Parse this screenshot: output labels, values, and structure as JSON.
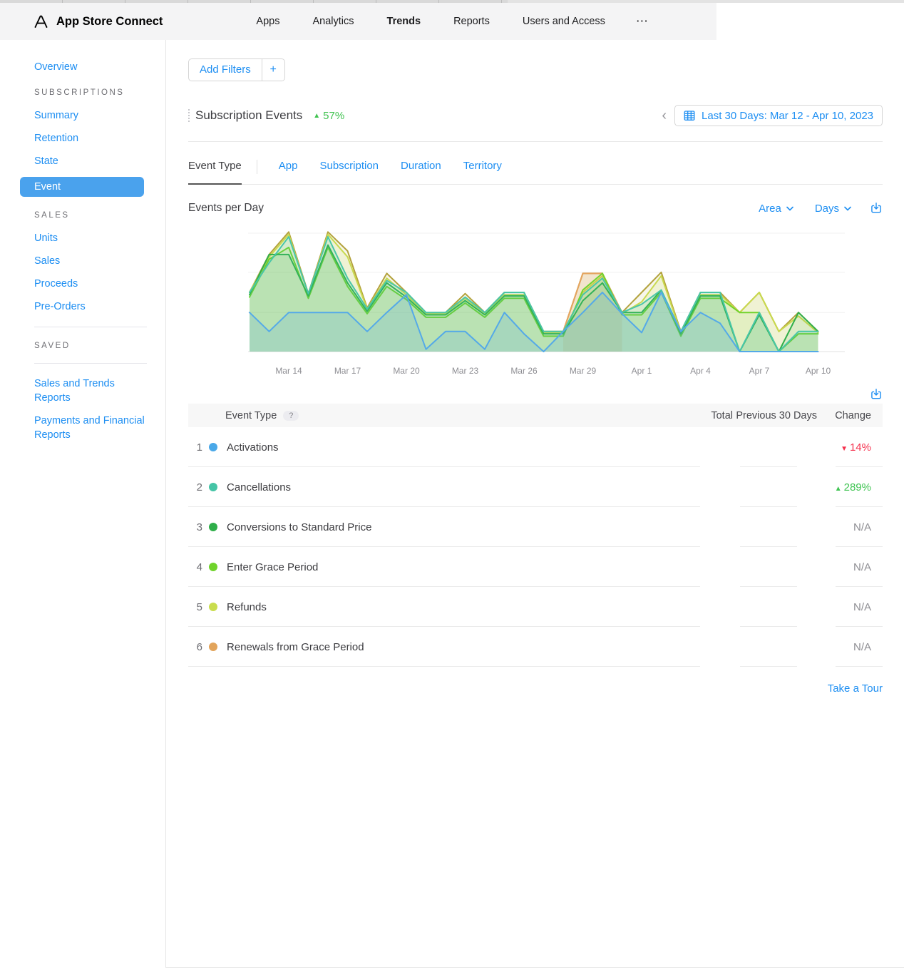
{
  "header": {
    "app_title": "App Store Connect",
    "nav": [
      {
        "label": "Apps",
        "active": false
      },
      {
        "label": "Analytics",
        "active": false
      },
      {
        "label": "Trends",
        "active": true
      },
      {
        "label": "Reports",
        "active": false
      },
      {
        "label": "Users and Access",
        "active": false
      }
    ],
    "more_label": "⋯"
  },
  "sidebar": {
    "items": [
      {
        "type": "link",
        "label": "Overview"
      },
      {
        "type": "section",
        "label": "SUBSCRIPTIONS"
      },
      {
        "type": "link",
        "label": "Summary"
      },
      {
        "type": "link",
        "label": "Retention"
      },
      {
        "type": "link",
        "label": "State"
      },
      {
        "type": "link",
        "label": "Event",
        "selected": true
      },
      {
        "type": "section",
        "label": "SALES"
      },
      {
        "type": "link",
        "label": "Units"
      },
      {
        "type": "link",
        "label": "Sales"
      },
      {
        "type": "link",
        "label": "Proceeds"
      },
      {
        "type": "link",
        "label": "Pre-Orders"
      },
      {
        "type": "divider"
      },
      {
        "type": "section",
        "label": "SAVED"
      },
      {
        "type": "divider"
      },
      {
        "type": "link",
        "label": "Sales and Trends Reports"
      },
      {
        "type": "link",
        "label": "Payments and Financial Reports"
      }
    ]
  },
  "filters": {
    "add_label": "Add Filters",
    "plus_label": "+"
  },
  "summary": {
    "title": "Subscription Events",
    "change": "57%",
    "direction": "up"
  },
  "date_picker": {
    "prev_arrow": "‹",
    "label": "Last 30 Days: Mar 12 - Apr 10, 2023"
  },
  "tabs": [
    {
      "label": "Event Type",
      "active": true
    },
    {
      "label": "App",
      "active": false
    },
    {
      "label": "Subscription",
      "active": false
    },
    {
      "label": "Duration",
      "active": false
    },
    {
      "label": "Territory",
      "active": false
    }
  ],
  "chart_header": {
    "title": "Events per Day",
    "type_selector": "Area",
    "interval_selector": "Days"
  },
  "chart_data": {
    "type": "area",
    "title": "Events per Day",
    "x": [
      "Mar 12",
      "Mar 13",
      "Mar 14",
      "Mar 15",
      "Mar 16",
      "Mar 17",
      "Mar 18",
      "Mar 19",
      "Mar 20",
      "Mar 21",
      "Mar 22",
      "Mar 23",
      "Mar 24",
      "Mar 25",
      "Mar 26",
      "Mar 27",
      "Mar 28",
      "Mar 29",
      "Mar 30",
      "Mar 31",
      "Apr 1",
      "Apr 2",
      "Apr 3",
      "Apr 4",
      "Apr 5",
      "Apr 6",
      "Apr 7",
      "Apr 8",
      "Apr 9",
      "Apr 10"
    ],
    "x_tick_labels": [
      "Mar 14",
      "Mar 17",
      "Mar 20",
      "Mar 23",
      "Mar 26",
      "Mar 29",
      "Apr 1",
      "Apr 4",
      "Apr 7",
      "Apr 10"
    ],
    "x_tick_indices": [
      2,
      5,
      8,
      11,
      14,
      17,
      20,
      23,
      26,
      29
    ],
    "ylim": [
      0,
      110
    ],
    "gridline_values": [
      0,
      33,
      67,
      100
    ],
    "y_axis_labels_shown": false,
    "legend_position": "none",
    "note": "values estimated from unlabeled y-axis gridlines",
    "series": [
      {
        "name": "Activations",
        "color": "#54a9e8",
        "fill_opacity": 0.18,
        "values": [
          33,
          17,
          33,
          33,
          33,
          33,
          17,
          33,
          48,
          2,
          17,
          17,
          2,
          33,
          15,
          0,
          17,
          33,
          50,
          32,
          16,
          50,
          17,
          33,
          24,
          0,
          0,
          0,
          0,
          0
        ]
      },
      {
        "name": "Cancellations",
        "color": "#49c6a8",
        "fill_opacity": 0.16,
        "values": [
          50,
          75,
          97,
          49,
          97,
          62,
          36,
          60,
          50,
          33,
          33,
          46,
          33,
          50,
          50,
          17,
          17,
          48,
          62,
          33,
          40,
          52,
          17,
          50,
          50,
          0,
          33,
          0,
          17,
          17
        ]
      },
      {
        "name": "Conversions to Standard Price",
        "color": "#2fae4a",
        "fill_opacity": 0.1,
        "values": [
          48,
          82,
          82,
          47,
          90,
          58,
          34,
          58,
          46,
          31,
          31,
          43,
          31,
          47,
          47,
          15,
          15,
          43,
          58,
          33,
          33,
          52,
          15,
          47,
          47,
          0,
          31,
          0,
          33,
          17
        ]
      },
      {
        "name": "Enter Grace Period",
        "color": "#72d32c",
        "fill_opacity": 0.1,
        "values": [
          46,
          78,
          88,
          45,
          88,
          55,
          32,
          55,
          44,
          29,
          29,
          41,
          29,
          45,
          45,
          13,
          13,
          52,
          66,
          31,
          31,
          50,
          13,
          45,
          45,
          33,
          33,
          0,
          15,
          15
        ]
      },
      {
        "name": "Refunds",
        "color": "#c9d94e",
        "fill_opacity": 0.14,
        "values": [
          50,
          80,
          99,
          48,
          99,
          80,
          36,
          62,
          48,
          32,
          32,
          45,
          32,
          48,
          48,
          16,
          16,
          50,
          64,
          32,
          42,
          64,
          16,
          48,
          48,
          33,
          50,
          17,
          30,
          16
        ]
      },
      {
        "name": "Renewals from Grace Period",
        "color": "#e5a45f",
        "fill_opacity": 0.22,
        "values": [
          null,
          null,
          null,
          null,
          null,
          null,
          null,
          null,
          null,
          null,
          null,
          null,
          null,
          null,
          null,
          null,
          17,
          66,
          66,
          33,
          null,
          null,
          null,
          null,
          null,
          null,
          null,
          null,
          null,
          null
        ]
      },
      {
        "name": "Total",
        "color": "#b3a23c",
        "fill_opacity": 0.1,
        "values": [
          50,
          82,
          101,
          49,
          101,
          85,
          37,
          66,
          50,
          33,
          33,
          49,
          33,
          50,
          50,
          17,
          17,
          66,
          66,
          33,
          50,
          67,
          17,
          50,
          50,
          33,
          50,
          17,
          33,
          17
        ]
      }
    ]
  },
  "table": {
    "columns": [
      "Event Type",
      "Total",
      "Previous 30 Days",
      "Change"
    ],
    "help_badge": "?",
    "rows": [
      {
        "index": "1",
        "color": "#4aa8e8",
        "label": "Activations",
        "total": "",
        "previous": "",
        "change": "14%",
        "change_direction": "down"
      },
      {
        "index": "2",
        "color": "#45c4a6",
        "label": "Cancellations",
        "total": "",
        "previous": "",
        "change": "289%",
        "change_direction": "up"
      },
      {
        "index": "3",
        "color": "#2fae4a",
        "label": "Conversions to Standard Price",
        "total": "",
        "previous": "",
        "change": "N/A",
        "change_direction": "none"
      },
      {
        "index": "4",
        "color": "#70d32c",
        "label": "Enter Grace Period",
        "total": "",
        "previous": "",
        "change": "N/A",
        "change_direction": "none"
      },
      {
        "index": "5",
        "color": "#c9dd4e",
        "label": "Refunds",
        "total": "",
        "previous": "",
        "change": "N/A",
        "change_direction": "none"
      },
      {
        "index": "6",
        "color": "#e2a45b",
        "label": "Renewals from Grace Period",
        "total": "",
        "previous": "",
        "change": "N/A",
        "change_direction": "none"
      }
    ]
  },
  "footer": {
    "tour_label": "Take a Tour"
  },
  "icons": {
    "up_arrow": "▲",
    "down_arrow": "▼",
    "chevron_left": "‹",
    "more": "⋯"
  }
}
